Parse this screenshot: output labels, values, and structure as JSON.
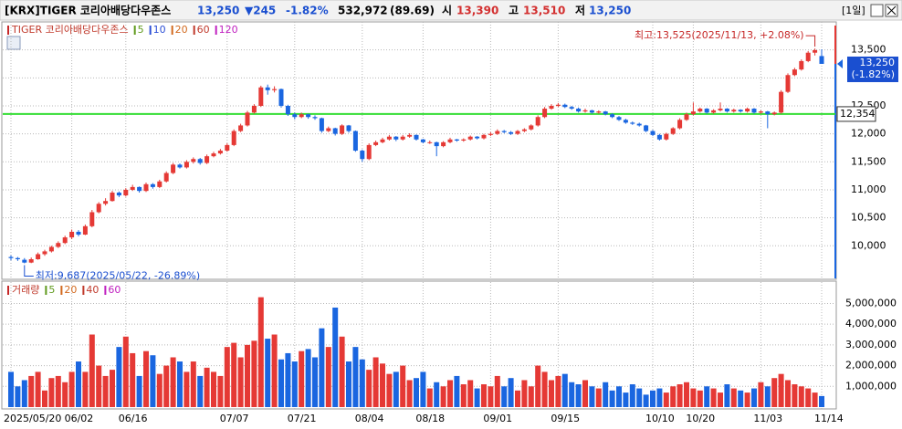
{
  "header": {
    "name": "[KRX]TIGER 코리아배당다우존스",
    "price": "13,250",
    "change": "▼245",
    "change_pct": "-1.82%",
    "volume": "532,972",
    "ratio": "(89.69)",
    "open_label": "시",
    "open": "13,390",
    "high_label": "고",
    "high": "13,510",
    "low_label": "저",
    "low": "13,250",
    "period": "[1일]"
  },
  "chart_data": {
    "type": "candlestick",
    "legend_title": "TIGER 코리아배당다우존스",
    "ma_legend": [
      {
        "name": "5",
        "color": "#5f9a1c"
      },
      {
        "name": "10",
        "color": "#2c4fd6"
      },
      {
        "name": "20",
        "color": "#d2691e"
      },
      {
        "name": "60",
        "color": "#c0392b"
      },
      {
        "name": "120",
        "color": "#c020c0"
      }
    ],
    "up_color": "#e53935",
    "down_color": "#1a66e0",
    "ylim": [
      9450,
      14000
    ],
    "yticks": [
      {
        "value": 10000,
        "label": "10,000"
      },
      {
        "value": 10500,
        "label": "10,500"
      },
      {
        "value": 11000,
        "label": "11,000"
      },
      {
        "value": 11500,
        "label": "11,500"
      },
      {
        "value": 12000,
        "label": "12,000"
      },
      {
        "value": 12500,
        "label": "12,500"
      },
      {
        "value": 13000,
        "label": "13,000"
      },
      {
        "value": 13500,
        "label": "13,500"
      }
    ],
    "grid": true,
    "hline": {
      "value": 12354,
      "label": "12,354",
      "color": "#33dd33"
    },
    "current": {
      "value": 13250,
      "label": "13,250",
      "change": "(-1.82%)"
    },
    "annotations": {
      "high": {
        "text": "최고:13,525(2025/11/13, +2.08%)",
        "value": 13525
      },
      "low": {
        "text": "최저:9,687(2025/05/22, -26.89%)",
        "value": 9687
      }
    },
    "categories": [
      "2025/05/20",
      null,
      null,
      null,
      null,
      null,
      null,
      null,
      null,
      "06/02",
      null,
      null,
      null,
      null,
      null,
      null,
      null,
      "06/16",
      null,
      null,
      null,
      null,
      null,
      null,
      null,
      null,
      null,
      null,
      null,
      null,
      null,
      null,
      "07/07",
      null,
      null,
      null,
      null,
      null,
      null,
      null,
      null,
      null,
      "07/21",
      null,
      null,
      null,
      null,
      null,
      null,
      null,
      null,
      null,
      "08/04",
      null,
      null,
      null,
      null,
      null,
      null,
      null,
      null,
      "08/18",
      null,
      null,
      null,
      null,
      null,
      null,
      null,
      null,
      null,
      "09/01",
      null,
      null,
      null,
      null,
      null,
      null,
      null,
      null,
      null,
      "09/15",
      null,
      null,
      null,
      null,
      null,
      null,
      null,
      null,
      null,
      null,
      null,
      null,
      null,
      "10/10",
      null,
      null,
      null,
      null,
      null,
      "10/20",
      null,
      null,
      null,
      null,
      null,
      null,
      null,
      null,
      null,
      "11/03",
      null,
      null,
      null,
      null,
      null,
      null,
      null,
      null,
      "11/14"
    ],
    "ohlc": [
      [
        9800,
        9830,
        9740,
        9780
      ],
      [
        9780,
        9800,
        9730,
        9760
      ],
      [
        9750,
        9780,
        9687,
        9700
      ],
      [
        9700,
        9790,
        9690,
        9760
      ],
      [
        9760,
        9880,
        9750,
        9850
      ],
      [
        9850,
        9930,
        9820,
        9900
      ],
      [
        9900,
        10000,
        9880,
        9980
      ],
      [
        9980,
        10080,
        9960,
        10050
      ],
      [
        10050,
        10180,
        10030,
        10150
      ],
      [
        10150,
        10290,
        10120,
        10250
      ],
      [
        10250,
        10280,
        10170,
        10200
      ],
      [
        10200,
        10380,
        10190,
        10350
      ],
      [
        10350,
        10640,
        10330,
        10600
      ],
      [
        10600,
        10780,
        10580,
        10750
      ],
      [
        10750,
        10850,
        10720,
        10800
      ],
      [
        10800,
        10980,
        10790,
        10950
      ],
      [
        10950,
        10970,
        10870,
        10900
      ],
      [
        10900,
        11030,
        10880,
        11000
      ],
      [
        11000,
        11090,
        10980,
        11050
      ],
      [
        11050,
        11060,
        10950,
        10980
      ],
      [
        10980,
        11130,
        10960,
        11100
      ],
      [
        11100,
        11120,
        11020,
        11050
      ],
      [
        11050,
        11180,
        11030,
        11150
      ],
      [
        11150,
        11330,
        11130,
        11300
      ],
      [
        11300,
        11480,
        11280,
        11450
      ],
      [
        11450,
        11470,
        11380,
        11400
      ],
      [
        11400,
        11530,
        11380,
        11500
      ],
      [
        11500,
        11580,
        11470,
        11550
      ],
      [
        11550,
        11570,
        11450,
        11480
      ],
      [
        11480,
        11630,
        11460,
        11600
      ],
      [
        11600,
        11680,
        11580,
        11650
      ],
      [
        11650,
        11730,
        11630,
        11700
      ],
      [
        11700,
        11830,
        11680,
        11800
      ],
      [
        11800,
        12080,
        11780,
        12050
      ],
      [
        12050,
        12180,
        12030,
        12150
      ],
      [
        12150,
        12410,
        12130,
        12380
      ],
      [
        12380,
        12530,
        12360,
        12500
      ],
      [
        12500,
        12860,
        12480,
        12830
      ],
      [
        12830,
        12880,
        12700,
        12780
      ],
      [
        12780,
        12850,
        12740,
        12800
      ],
      [
        12800,
        12810,
        12470,
        12500
      ],
      [
        12500,
        12520,
        12320,
        12350
      ],
      [
        12350,
        12380,
        12260,
        12300
      ],
      [
        12300,
        12380,
        12280,
        12350
      ],
      [
        12350,
        12360,
        12270,
        12300
      ],
      [
        12300,
        12330,
        12250,
        12280
      ],
      [
        12280,
        12290,
        12020,
        12050
      ],
      [
        12050,
        12130,
        12030,
        12100
      ],
      [
        12100,
        12110,
        11970,
        12000
      ],
      [
        12000,
        12170,
        11980,
        12150
      ],
      [
        12150,
        12160,
        12020,
        12050
      ],
      [
        12050,
        12060,
        11680,
        11700
      ],
      [
        11700,
        11720,
        11500,
        11550
      ],
      [
        11550,
        11830,
        11530,
        11800
      ],
      [
        11800,
        11880,
        11780,
        11850
      ],
      [
        11850,
        11930,
        11830,
        11900
      ],
      [
        11900,
        11980,
        11880,
        11950
      ],
      [
        11950,
        11960,
        11870,
        11900
      ],
      [
        11900,
        11980,
        11880,
        11950
      ],
      [
        11950,
        12010,
        11930,
        11980
      ],
      [
        11980,
        11990,
        11880,
        11900
      ],
      [
        11900,
        11910,
        11830,
        11850
      ],
      [
        11850,
        11880,
        11820,
        11850
      ],
      [
        11850,
        11860,
        11600,
        11780
      ],
      [
        11780,
        11870,
        11760,
        11850
      ],
      [
        11850,
        11930,
        11830,
        11900
      ],
      [
        11900,
        11910,
        11860,
        11880
      ],
      [
        11880,
        11920,
        11860,
        11900
      ],
      [
        11900,
        11970,
        11880,
        11950
      ],
      [
        11950,
        11960,
        11900,
        11920
      ],
      [
        11920,
        12000,
        11900,
        11980
      ],
      [
        11980,
        12030,
        11960,
        12000
      ],
      [
        12000,
        12080,
        11980,
        12050
      ],
      [
        12050,
        12070,
        12010,
        12030
      ],
      [
        12030,
        12050,
        11980,
        12000
      ],
      [
        12000,
        12070,
        11980,
        12050
      ],
      [
        12050,
        12100,
        12030,
        12080
      ],
      [
        12080,
        12170,
        12060,
        12150
      ],
      [
        12150,
        12330,
        12130,
        12300
      ],
      [
        12300,
        12480,
        12280,
        12450
      ],
      [
        12450,
        12530,
        12430,
        12500
      ],
      [
        12500,
        12550,
        12480,
        12520
      ],
      [
        12520,
        12540,
        12460,
        12480
      ],
      [
        12480,
        12500,
        12430,
        12450
      ],
      [
        12450,
        12470,
        12380,
        12400
      ],
      [
        12400,
        12450,
        12380,
        12420
      ],
      [
        12420,
        12430,
        12360,
        12380
      ],
      [
        12380,
        12420,
        12360,
        12400
      ],
      [
        12400,
        12410,
        12330,
        12350
      ],
      [
        12350,
        12370,
        12280,
        12300
      ],
      [
        12300,
        12320,
        12230,
        12250
      ],
      [
        12250,
        12270,
        12180,
        12200
      ],
      [
        12200,
        12220,
        12160,
        12180
      ],
      [
        12180,
        12200,
        12130,
        12150
      ],
      [
        12150,
        12160,
        12030,
        12050
      ],
      [
        12050,
        12070,
        11960,
        11980
      ],
      [
        11980,
        12000,
        11880,
        11900
      ],
      [
        11900,
        12020,
        11880,
        12000
      ],
      [
        12000,
        12120,
        11980,
        12100
      ],
      [
        12100,
        12280,
        12080,
        12250
      ],
      [
        12250,
        12380,
        12230,
        12350
      ],
      [
        12350,
        12560,
        12330,
        12400
      ],
      [
        12400,
        12470,
        12380,
        12450
      ],
      [
        12450,
        12460,
        12360,
        12380
      ],
      [
        12380,
        12440,
        12360,
        12420
      ],
      [
        12420,
        12560,
        12400,
        12450
      ],
      [
        12450,
        12460,
        12380,
        12400
      ],
      [
        12400,
        12450,
        12380,
        12430
      ],
      [
        12430,
        12440,
        12380,
        12400
      ],
      [
        12400,
        12470,
        12380,
        12450
      ],
      [
        12450,
        12460,
        12360,
        12380
      ],
      [
        12380,
        12420,
        12360,
        12400
      ],
      [
        12400,
        12410,
        12100,
        12350
      ],
      [
        12350,
        12400,
        12330,
        12380
      ],
      [
        12380,
        12780,
        12360,
        12750
      ],
      [
        12750,
        13080,
        12730,
        13050
      ],
      [
        13050,
        13180,
        13030,
        13150
      ],
      [
        13150,
        13330,
        13130,
        13300
      ],
      [
        13300,
        13480,
        13280,
        13450
      ],
      [
        13450,
        13525,
        13400,
        13495
      ],
      [
        13390,
        13510,
        13250,
        13250
      ]
    ],
    "volume": {
      "legend_title": "거래량",
      "ma_legend": [
        {
          "name": "5",
          "color": "#5f9a1c"
        },
        {
          "name": "20",
          "color": "#d2691e"
        },
        {
          "name": "40",
          "color": "#c0392b"
        },
        {
          "name": "60",
          "color": "#c020c0"
        }
      ],
      "ylim": [
        0,
        5900000
      ],
      "yticks": [
        {
          "value": 1000000,
          "label": "1,000,000"
        },
        {
          "value": 2000000,
          "label": "2,000,000"
        },
        {
          "value": 3000000,
          "label": "3,000,000"
        },
        {
          "value": 4000000,
          "label": "4,000,000"
        },
        {
          "value": 5000000,
          "label": "5,000,000"
        }
      ],
      "values": [
        1700000,
        1000000,
        1300000,
        1500000,
        1700000,
        800000,
        1400000,
        1500000,
        1200000,
        1700000,
        2200000,
        1700000,
        3500000,
        2000000,
        1500000,
        1800000,
        2900000,
        3400000,
        2600000,
        1500000,
        2700000,
        2500000,
        1600000,
        2000000,
        2400000,
        2200000,
        1700000,
        2200000,
        1500000,
        1900000,
        1700000,
        1500000,
        2900000,
        3100000,
        2400000,
        3000000,
        3200000,
        5300000,
        3300000,
        3500000,
        2300000,
        2600000,
        2200000,
        2700000,
        2800000,
        2400000,
        3800000,
        2900000,
        4800000,
        3400000,
        2200000,
        2900000,
        2300000,
        1800000,
        2400000,
        2100000,
        1600000,
        1700000,
        2000000,
        1300000,
        1400000,
        1700000,
        900000,
        1200000,
        1000000,
        1300000,
        1500000,
        1100000,
        1300000,
        900000,
        1100000,
        1000000,
        1500000,
        1000000,
        1400000,
        800000,
        1300000,
        1000000,
        2000000,
        1700000,
        1300000,
        1500000,
        1600000,
        1200000,
        1100000,
        1300000,
        1000000,
        900000,
        1200000,
        800000,
        1000000,
        700000,
        1100000,
        900000,
        600000,
        800000,
        900000,
        700000,
        1000000,
        1100000,
        1200000,
        900000,
        800000,
        1000000,
        900000,
        700000,
        1100000,
        900000,
        800000,
        700000,
        900000,
        1200000,
        1000000,
        1400000,
        1600000,
        1300000,
        1100000,
        1000000,
        900000,
        700000,
        532972
      ]
    }
  }
}
